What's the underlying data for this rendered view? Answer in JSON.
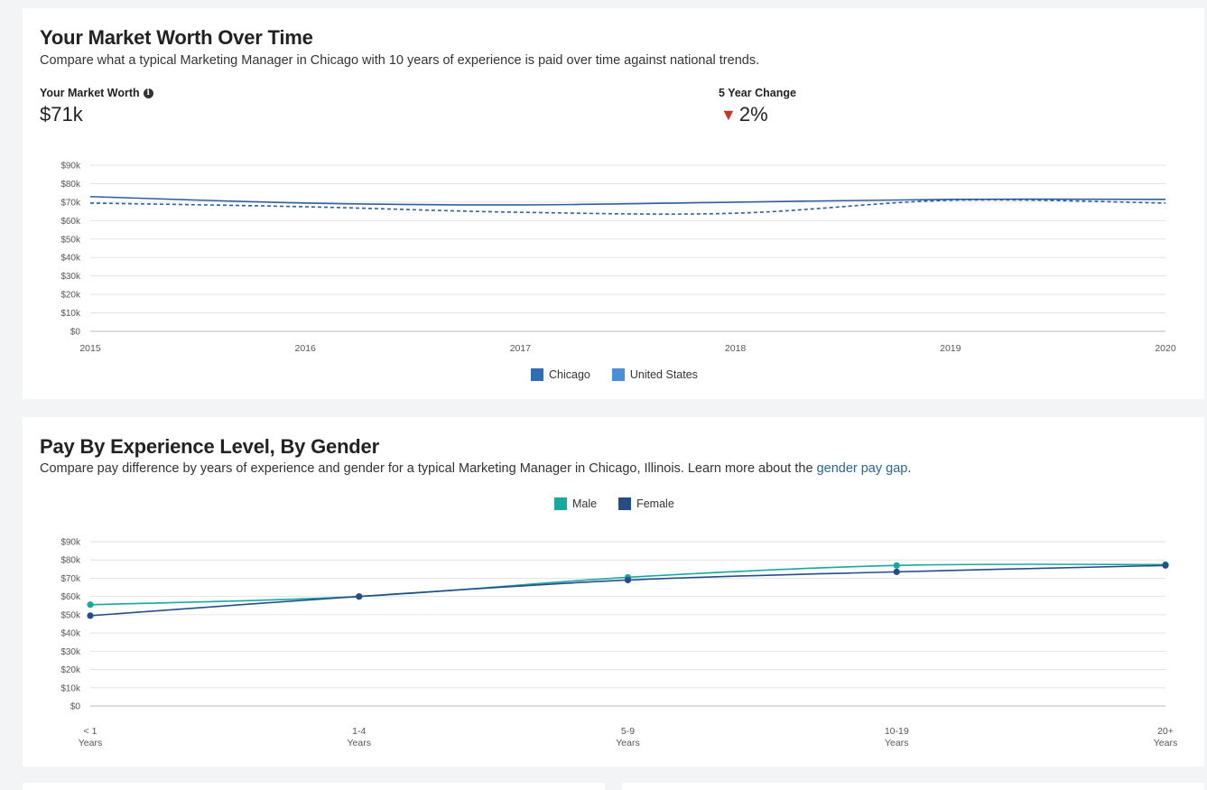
{
  "market_worth": {
    "title": "Your Market Worth Over Time",
    "subtitle": "Compare what a typical Marketing Manager in Chicago with 10 years of experience is paid over time against national trends.",
    "worth_label": "Your Market Worth",
    "worth_value": "$71k",
    "change_label": "5 Year Change",
    "change_value": "2%",
    "change_direction": "down",
    "change_color": "#c0392b",
    "legend": [
      {
        "label": "Chicago",
        "color": "#2f6db5"
      },
      {
        "label": "United States",
        "color": "#4a90d9"
      }
    ]
  },
  "gender_pay": {
    "title": "Pay By Experience Level, By Gender",
    "subtitle_text": "Compare pay difference by years of experience and gender for a typical Marketing Manager in Chicago, Illinois. Learn more about the ",
    "subtitle_link": "gender pay gap",
    "subtitle_end": ".",
    "legend": [
      {
        "label": "Male",
        "color": "#17a8a0"
      },
      {
        "label": "Female",
        "color": "#264e86"
      }
    ]
  },
  "chart_data": [
    {
      "type": "line",
      "x": [
        "2015",
        "2016",
        "2017",
        "2018",
        "2019",
        "2020"
      ],
      "yticks": [
        "$0",
        "$10k",
        "$20k",
        "$30k",
        "$40k",
        "$50k",
        "$60k",
        "$70k",
        "$80k",
        "$90k"
      ],
      "ylim": [
        0,
        90000
      ],
      "grid": true,
      "legend_position": "bottom",
      "series": [
        {
          "name": "Chicago",
          "color": "#2f5f9e",
          "style": "solid",
          "values": [
            73000,
            69500,
            68500,
            70000,
            71500,
            71500
          ]
        },
        {
          "name": "United States",
          "color": "#2f5f9e",
          "style": "dashed",
          "values": [
            69500,
            67500,
            64500,
            64000,
            71000,
            69500
          ]
        }
      ]
    },
    {
      "type": "line",
      "categories": [
        [
          "< 1",
          "Years"
        ],
        [
          "1-4",
          "Years"
        ],
        [
          "5-9",
          "Years"
        ],
        [
          "10-19",
          "Years"
        ],
        [
          "20+",
          "Years"
        ]
      ],
      "yticks": [
        "$0",
        "$10k",
        "$20k",
        "$30k",
        "$40k",
        "$50k",
        "$60k",
        "$70k",
        "$80k",
        "$90k"
      ],
      "ylim": [
        0,
        90000
      ],
      "grid": true,
      "legend_position": "top",
      "series": [
        {
          "name": "Male",
          "color": "#17a8a0",
          "values": [
            55500,
            60000,
            70500,
            77000,
            77500
          ]
        },
        {
          "name": "Female",
          "color": "#264e86",
          "values": [
            49500,
            60000,
            69000,
            73500,
            77000
          ]
        }
      ]
    }
  ]
}
